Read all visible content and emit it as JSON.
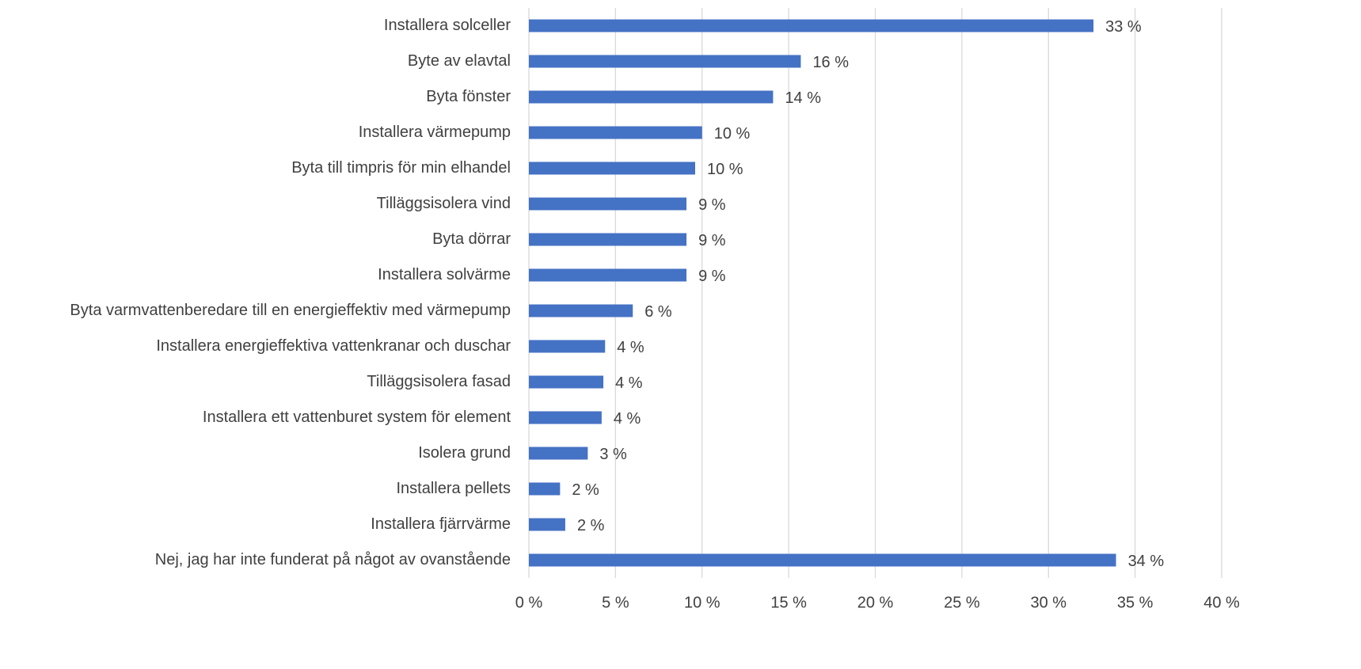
{
  "chart_data": {
    "type": "bar",
    "orientation": "horizontal",
    "categories": [
      "Installera solceller",
      "Byte av elavtal",
      "Byta fönster",
      "Installera värmepump",
      "Byta till timpris för min elhandel",
      "Tilläggsisolera vind",
      "Byta dörrar",
      "Installera solvärme",
      "Byta varmvattenberedare till en energieffektiv med värmepump",
      "Installera energieffektiva vattenkranar och duschar",
      "Tilläggsisolera fasad",
      "Installera ett vattenburet system för element",
      "Isolera grund",
      "Installera pellets",
      "Installera fjärrvärme",
      "Nej, jag har inte funderat på något av ovanstående"
    ],
    "values": [
      32.6,
      15.7,
      14.1,
      10.0,
      9.6,
      9.1,
      9.1,
      9.1,
      6.0,
      4.4,
      4.3,
      4.2,
      3.4,
      1.8,
      2.1,
      33.9
    ],
    "value_labels": [
      "33 %",
      "16 %",
      "14 %",
      "10 %",
      "10 %",
      "9 %",
      "9 %",
      "9 %",
      "6 %",
      "4 %",
      "4 %",
      "4 %",
      "3 %",
      "2 %",
      "2 %",
      "34 %"
    ],
    "color": "#4472c4",
    "xlim": [
      0,
      40
    ],
    "xticks": [
      {
        "value": 0,
        "label": "0 %"
      },
      {
        "value": 5,
        "label": "5 %"
      },
      {
        "value": 10,
        "label": "10 %"
      },
      {
        "value": 15,
        "label": "15 %"
      },
      {
        "value": 20,
        "label": "20 %"
      },
      {
        "value": 25,
        "label": "25 %"
      },
      {
        "value": 30,
        "label": "30 %"
      },
      {
        "value": 35,
        "label": "35 %"
      },
      {
        "value": 40,
        "label": "40 %"
      }
    ],
    "grid": true
  }
}
